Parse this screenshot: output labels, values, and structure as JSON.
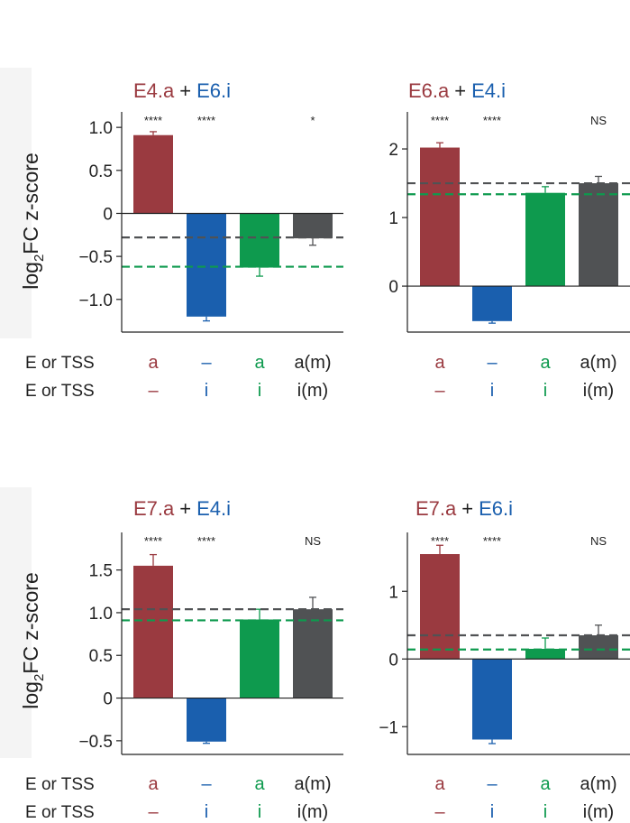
{
  "colors": {
    "a": "#9a3a40",
    "i": "#1a5fae",
    "ai": "#0e9a4e",
    "m": "#505254",
    "axis": "#222222",
    "shade": "#f4f4f4"
  },
  "ylabel_main": "log",
  "ylabel_sub": "2",
  "ylabel_rest": "FC z-score",
  "row_labels": [
    "E or TSS",
    "E or TSS"
  ],
  "chart_data": [
    {
      "type": "bar",
      "title_a": "E4.a",
      "title_plus": "+",
      "title_i": "E6.i",
      "categories": [
        "a",
        "i",
        "a+i",
        "a(m)+i(m)"
      ],
      "row1": [
        "a",
        "–",
        "a",
        "a(m)"
      ],
      "row2": [
        "–",
        "i",
        "i",
        "i(m)"
      ],
      "values": [
        0.91,
        -1.2,
        -0.63,
        -0.29
      ],
      "errors": [
        0.04,
        0.05,
        0.1,
        0.08
      ],
      "significance": [
        "****",
        "****",
        "",
        "*"
      ],
      "ref_gray": -0.28,
      "ref_green": -0.62,
      "ylim": [
        -1.38,
        1.18
      ],
      "yticks": [
        1.0,
        0.5,
        0,
        -0.5,
        -1.0
      ],
      "yticklabels": [
        "1.0",
        "0.5",
        "0",
        "−0.5",
        "−1.0"
      ]
    },
    {
      "type": "bar",
      "title_a": "E6.a",
      "title_plus": "+",
      "title_i": "E4.i",
      "categories": [
        "a",
        "i",
        "a+i",
        "a(m)+i(m)"
      ],
      "row1": [
        "a",
        "–",
        "a",
        "a(m)"
      ],
      "row2": [
        "–",
        "i",
        "i",
        "i(m)"
      ],
      "values": [
        2.02,
        -0.51,
        1.36,
        1.5
      ],
      "errors": [
        0.07,
        0.03,
        0.09,
        0.1
      ],
      "significance": [
        "****",
        "****",
        "",
        "NS"
      ],
      "ref_gray": 1.5,
      "ref_green": 1.34,
      "ylim": [
        -0.67,
        2.54
      ],
      "yticks": [
        2,
        1,
        0
      ],
      "yticklabels": [
        "2",
        "1",
        "0"
      ]
    },
    {
      "type": "bar",
      "title_a": "E7.a",
      "title_plus": "+",
      "title_i": "E4.i",
      "categories": [
        "a",
        "i",
        "a+i",
        "a(m)+i(m)"
      ],
      "row1": [
        "a",
        "–",
        "a",
        "a(m)"
      ],
      "row2": [
        "–",
        "i",
        "i",
        "i(m)"
      ],
      "values": [
        1.55,
        -0.51,
        0.92,
        1.04
      ],
      "errors": [
        0.13,
        0.02,
        0.12,
        0.14
      ],
      "significance": [
        "****",
        "****",
        "",
        "NS"
      ],
      "ref_gray": 1.04,
      "ref_green": 0.91,
      "ylim": [
        -0.66,
        1.94
      ],
      "yticks": [
        1.5,
        1.0,
        0.5,
        0,
        -0.5
      ],
      "yticklabels": [
        "1.5",
        "1.0",
        "0.5",
        "0",
        "−0.5"
      ]
    },
    {
      "type": "bar",
      "title_a": "E7.a",
      "title_plus": "+",
      "title_i": "E6.i",
      "categories": [
        "a",
        "i",
        "a+i",
        "a(m)+i(m)"
      ],
      "row1": [
        "a",
        "–",
        "a",
        "a(m)"
      ],
      "row2": [
        "–",
        "i",
        "i",
        "i(m)"
      ],
      "values": [
        1.55,
        -1.19,
        0.15,
        0.35
      ],
      "errors": [
        0.13,
        0.06,
        0.16,
        0.15
      ],
      "significance": [
        "****",
        "****",
        "",
        "NS"
      ],
      "ref_gray": 0.35,
      "ref_green": 0.14,
      "ylim": [
        -1.41,
        1.87
      ],
      "yticks": [
        1,
        0,
        -1
      ],
      "yticklabels": [
        "1",
        "0",
        "−1"
      ]
    }
  ]
}
